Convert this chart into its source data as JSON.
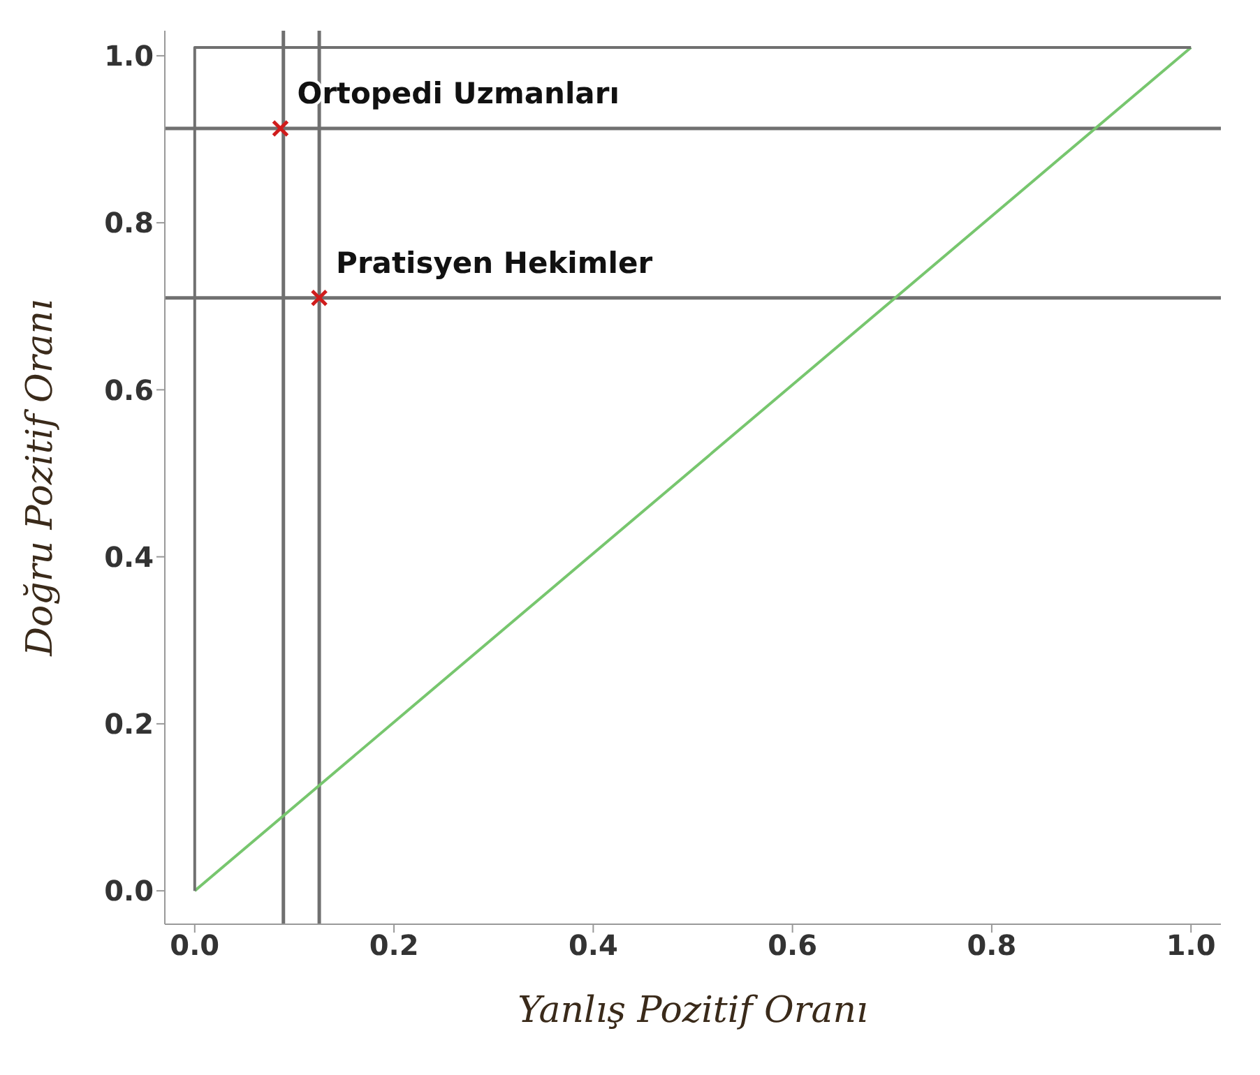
{
  "chart_data": {
    "type": "line",
    "xlabel": "Yanlış Pozitif Oranı",
    "ylabel": "Doğru Pozitif Oranı",
    "xlim": [
      -0.03,
      1.03
    ],
    "ylim": [
      -0.04,
      1.03
    ],
    "xticks": [
      {
        "value": 0,
        "label": "0.0"
      },
      {
        "value": 0.2,
        "label": "0.2"
      },
      {
        "value": 0.4,
        "label": "0.4"
      },
      {
        "value": 0.6,
        "label": "0.6"
      },
      {
        "value": 0.8,
        "label": "0.8"
      },
      {
        "value": 1,
        "label": "1.0"
      }
    ],
    "yticks": [
      {
        "value": 0,
        "label": "0.0"
      },
      {
        "value": 0.2,
        "label": "0.2"
      },
      {
        "value": 0.4,
        "label": "0.4"
      },
      {
        "value": 0.6,
        "label": "0.6"
      },
      {
        "value": 0.8,
        "label": "0.8"
      },
      {
        "value": 1,
        "label": "1.0"
      }
    ],
    "grid": false,
    "legend": false,
    "series": [
      {
        "color": "#77c66e",
        "x": [
          0,
          1
        ],
        "values": [
          0,
          1.01
        ]
      },
      {
        "color": "#707070",
        "x": [
          0,
          0,
          1
        ],
        "values": [
          0,
          1.01,
          1.01
        ]
      },
      {
        "type": "scatter",
        "color": "#d01c1c",
        "marker": "cross",
        "x": [
          0.086,
          0.125
        ],
        "values": [
          0.913,
          0.71
        ]
      }
    ],
    "ref_lines": [
      {
        "axis": "x",
        "value": 0.089,
        "color": "#707070"
      },
      {
        "axis": "x",
        "value": 0.125,
        "color": "#707070"
      },
      {
        "axis": "y",
        "value": 0.913,
        "color": "#707070"
      },
      {
        "axis": "y",
        "value": 0.71,
        "color": "#707070"
      }
    ],
    "annotations": [
      {
        "text": "Ortopedi Uzmanları",
        "x": 0.086,
        "y": 0.913
      },
      {
        "text": "Pratisyen Hekimler",
        "x": 0.125,
        "y": 0.71
      }
    ]
  }
}
